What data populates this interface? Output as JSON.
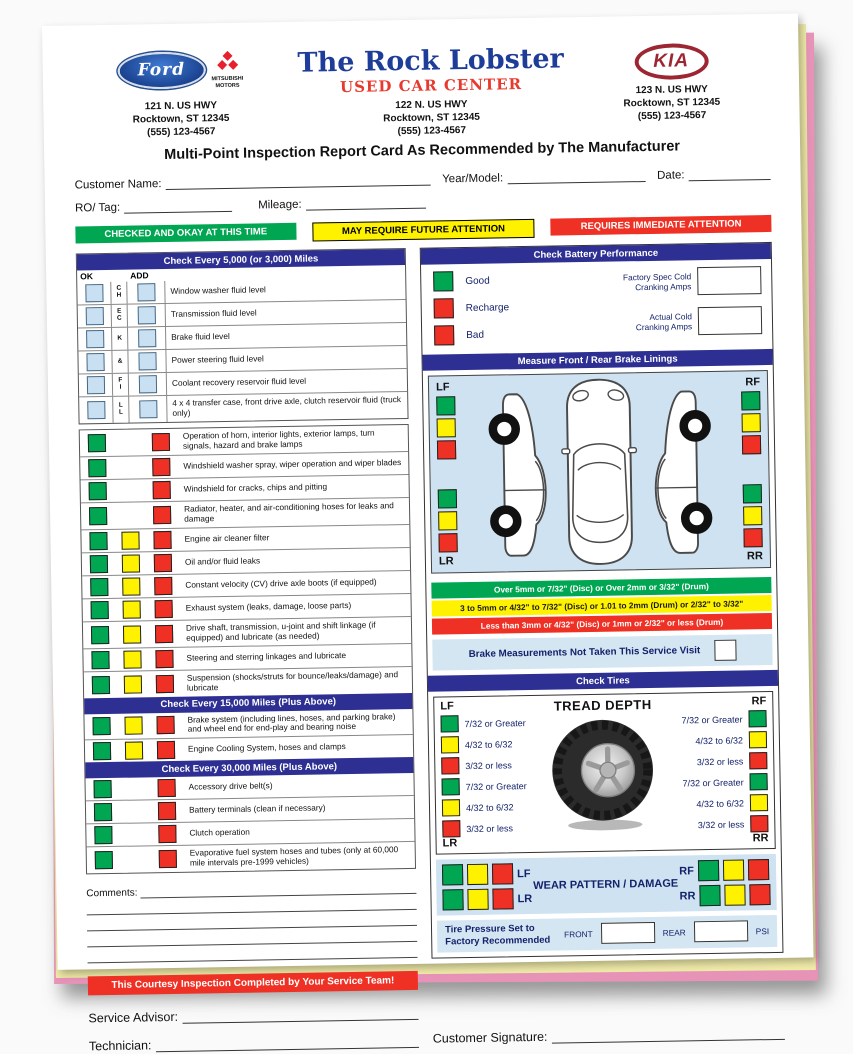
{
  "header": {
    "left": {
      "ford_label": "Ford",
      "mitsubishi_label": "MITSUBISHI\nMOTORS",
      "address": [
        "121 N. US HWY",
        "Rocktown, ST 12345",
        "(555) 123-4567"
      ]
    },
    "center": {
      "title": "The Rock Lobster",
      "subtitle": "USED CAR CENTER",
      "address": [
        "122 N. US HWY",
        "Rocktown, ST 12345",
        "(555) 123-4567"
      ]
    },
    "right": {
      "kia_label": "KIA",
      "address": [
        "123 N. US HWY",
        "Rocktown, ST 12345",
        "(555) 123-4567"
      ]
    },
    "tagline": "Multi-Point Inspection Report Card As Recommended by The Manufacturer"
  },
  "fields": {
    "customer_name": "Customer Name:",
    "year_model": "Year/Model:",
    "date": "Date:",
    "ro_tag": "RO/ Tag:",
    "mileage": "Mileage:",
    "comments": "Comments:",
    "service_advisor": "Service Advisor:",
    "technician": "Technician:",
    "customer_signature": "Customer Signature:"
  },
  "legend": [
    {
      "label": "CHECKED AND OKAY AT THIS TIME",
      "color": "green"
    },
    {
      "label": "MAY REQUIRE FUTURE ATTENTION",
      "color": "yellow"
    },
    {
      "label": "REQUIRES IMMEDIATE ATTENTION",
      "color": "red"
    }
  ],
  "checklist": {
    "section1": {
      "title": "Check Every 5,000 (or 3,000) Miles",
      "col_ok": "OK",
      "col_add": "ADD",
      "letters": [
        "C\nH",
        "E\nC",
        "K",
        "&",
        "F\nI",
        "L\nL"
      ],
      "items": [
        "Window washer fluid level",
        "Transmission fluid level",
        "Brake fluid level",
        "Power steering fluid level",
        "Coolant recovery reservoir fluid level",
        "4 x 4 transfer case, front drive axle, clutch reservoir fluid (truck only)"
      ]
    },
    "section2": {
      "items": [
        {
          "label": "Operation of horn, interior lights, exterior lamps, turn signals, hazard and brake lamps",
          "marks": [
            "green",
            "red"
          ]
        },
        {
          "label": "Windshield washer spray, wiper operation and wiper blades",
          "marks": [
            "green",
            "red"
          ]
        },
        {
          "label": "Windshield for cracks, chips and pitting",
          "marks": [
            "green",
            "red"
          ]
        },
        {
          "label": "Radiator, heater, and air-conditioning hoses for leaks and damage",
          "marks": [
            "green",
            "red"
          ]
        },
        {
          "label": "Engine air cleaner filter",
          "marks": [
            "green",
            "yellow",
            "red"
          ]
        },
        {
          "label": "Oil and/or fluid leaks",
          "marks": [
            "green",
            "yellow",
            "red"
          ]
        },
        {
          "label": "Constant velocity (CV) drive axle boots (if equipped)",
          "marks": [
            "green",
            "yellow",
            "red"
          ]
        },
        {
          "label": "Exhaust system (leaks, damage, loose parts)",
          "marks": [
            "green",
            "yellow",
            "red"
          ]
        },
        {
          "label": "Drive shaft, transmission, u-joint and shift linkage (if equipped) and lubricate (as needed)",
          "marks": [
            "green",
            "yellow",
            "red"
          ]
        },
        {
          "label": "Steering and sterring linkages and lubricate",
          "marks": [
            "green",
            "yellow",
            "red"
          ]
        },
        {
          "label": "Suspension (shocks/struts for bounce/leaks/damage) and lubricate",
          "marks": [
            "green",
            "yellow",
            "red"
          ]
        }
      ]
    },
    "section3": {
      "title": "Check Every 15,000 Miles (Plus Above)",
      "items": [
        {
          "label": "Brake system (including lines, hoses, and parking brake) and wheel end for end-play and bearing noise",
          "marks": [
            "green",
            "yellow",
            "red"
          ]
        },
        {
          "label": "Engine Cooling System, hoses and clamps",
          "marks": [
            "green",
            "yellow",
            "red"
          ]
        }
      ]
    },
    "section4": {
      "title": "Check Every 30,000 Miles (Plus Above)",
      "items": [
        {
          "label": "Accessory drive belt(s)",
          "marks": [
            "green",
            "red"
          ]
        },
        {
          "label": "Battery terminals (clean if necessary)",
          "marks": [
            "green",
            "red"
          ]
        },
        {
          "label": "Clutch operation",
          "marks": [
            "green",
            "red"
          ]
        },
        {
          "label": "Evaporative fuel system hoses and tubes (only at 60,000 mile intervals pre-1999 vehicles)",
          "marks": [
            "green",
            "red"
          ]
        }
      ]
    }
  },
  "battery": {
    "title": "Check Battery Performance",
    "ratings": [
      {
        "label": "Good",
        "color": "green"
      },
      {
        "label": "Recharge",
        "color": "red"
      },
      {
        "label": "Bad",
        "color": "red"
      }
    ],
    "amps": [
      {
        "label": "Factory Spec Cold\nCranking Amps"
      },
      {
        "label": "Actual Cold\nCranking Amps"
      }
    ]
  },
  "brake_linings": {
    "title": "Measure Front / Rear Brake Linings",
    "corners": {
      "tl": "LF",
      "tr": "RF",
      "bl": "LR",
      "br": "RR"
    },
    "stack_marks": [
      "green",
      "yellow",
      "red"
    ],
    "bands": [
      {
        "label": "Over 5mm or 7/32\" (Disc) or Over 2mm or 3/32\" (Drum)",
        "color": "green"
      },
      {
        "label": "3 to 5mm or 4/32\" to 7/32\" (Disc) or 1.01 to 2mm (Drum) or 2/32\" to 3/32\"",
        "color": "yellow"
      },
      {
        "label": "Less than 3mm or 4/32\" (Disc) or 1mm or 2/32\" or less (Drum)",
        "color": "red"
      }
    ],
    "not_taken": "Brake Measurements Not Taken This Service Visit"
  },
  "tires": {
    "title": "Check Tires",
    "tread_title": "TREAD DEPTH",
    "corners": {
      "tl": "LF",
      "tr": "RF",
      "bl": "LR",
      "br": "RR"
    },
    "rows": [
      {
        "label": "7/32 or Greater",
        "color": "green"
      },
      {
        "label": "4/32 to 6/32",
        "color": "yellow"
      },
      {
        "label": "3/32 or less",
        "color": "red"
      },
      {
        "label": "7/32 or Greater",
        "color": "green"
      },
      {
        "label": "4/32 to 6/32",
        "color": "yellow"
      },
      {
        "label": "3/32 or less",
        "color": "red"
      }
    ],
    "wear": {
      "title": "WEAR PATTERN / DAMAGE",
      "left_labels": [
        "LF",
        "LR"
      ],
      "right_labels": [
        "RF",
        "RR"
      ],
      "marks": [
        "green",
        "yellow",
        "red"
      ]
    },
    "pressure": {
      "label": "Tire Pressure Set to\nFactory Recommended",
      "front": "FRONT",
      "rear": "REAR",
      "psi": "PSI"
    }
  },
  "footer": {
    "completed_banner": "This Courtesy Inspection Completed by Your Service Team!"
  },
  "colors": {
    "blue_bar": "#2d2f92",
    "green": "#00A651",
    "yellow": "#FFF200",
    "red": "#EE3124",
    "light_blue": "#cfe2f1",
    "pink_sheet": "#e793b8",
    "yellow_sheet": "#efeaa8"
  }
}
